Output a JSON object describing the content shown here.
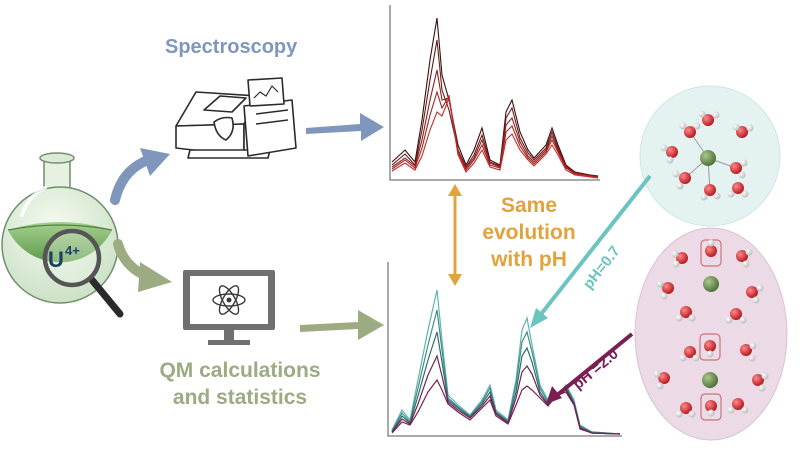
{
  "labels": {
    "spectroscopy": "Spectroscopy",
    "qm_line1": "QM calculations",
    "qm_line2": "and statistics",
    "evolution_line1": "Same",
    "evolution_line2": "evolution",
    "evolution_line3": "with pH",
    "flask_ion": "U",
    "flask_charge": "4+",
    "ph_low": "pH=0.7",
    "ph_high": "pH =2.0"
  },
  "colors": {
    "spectroscopy": "#7f97bd",
    "qm": "#9cab82",
    "evolution": "#e3a23c",
    "ph_low": "#6cc4c0",
    "ph_high": "#7a1f52",
    "flask_liquid": "#7fb86a",
    "cluster_low_bg": "#e4f3f2",
    "cluster_high_bg": "#ecdbe6"
  },
  "icons": {
    "flask": "round-bottom-flask",
    "magnifier": "magnifying-glass",
    "spectrometer": "spectrometer-instrument",
    "computer": "monitor-atom"
  }
}
